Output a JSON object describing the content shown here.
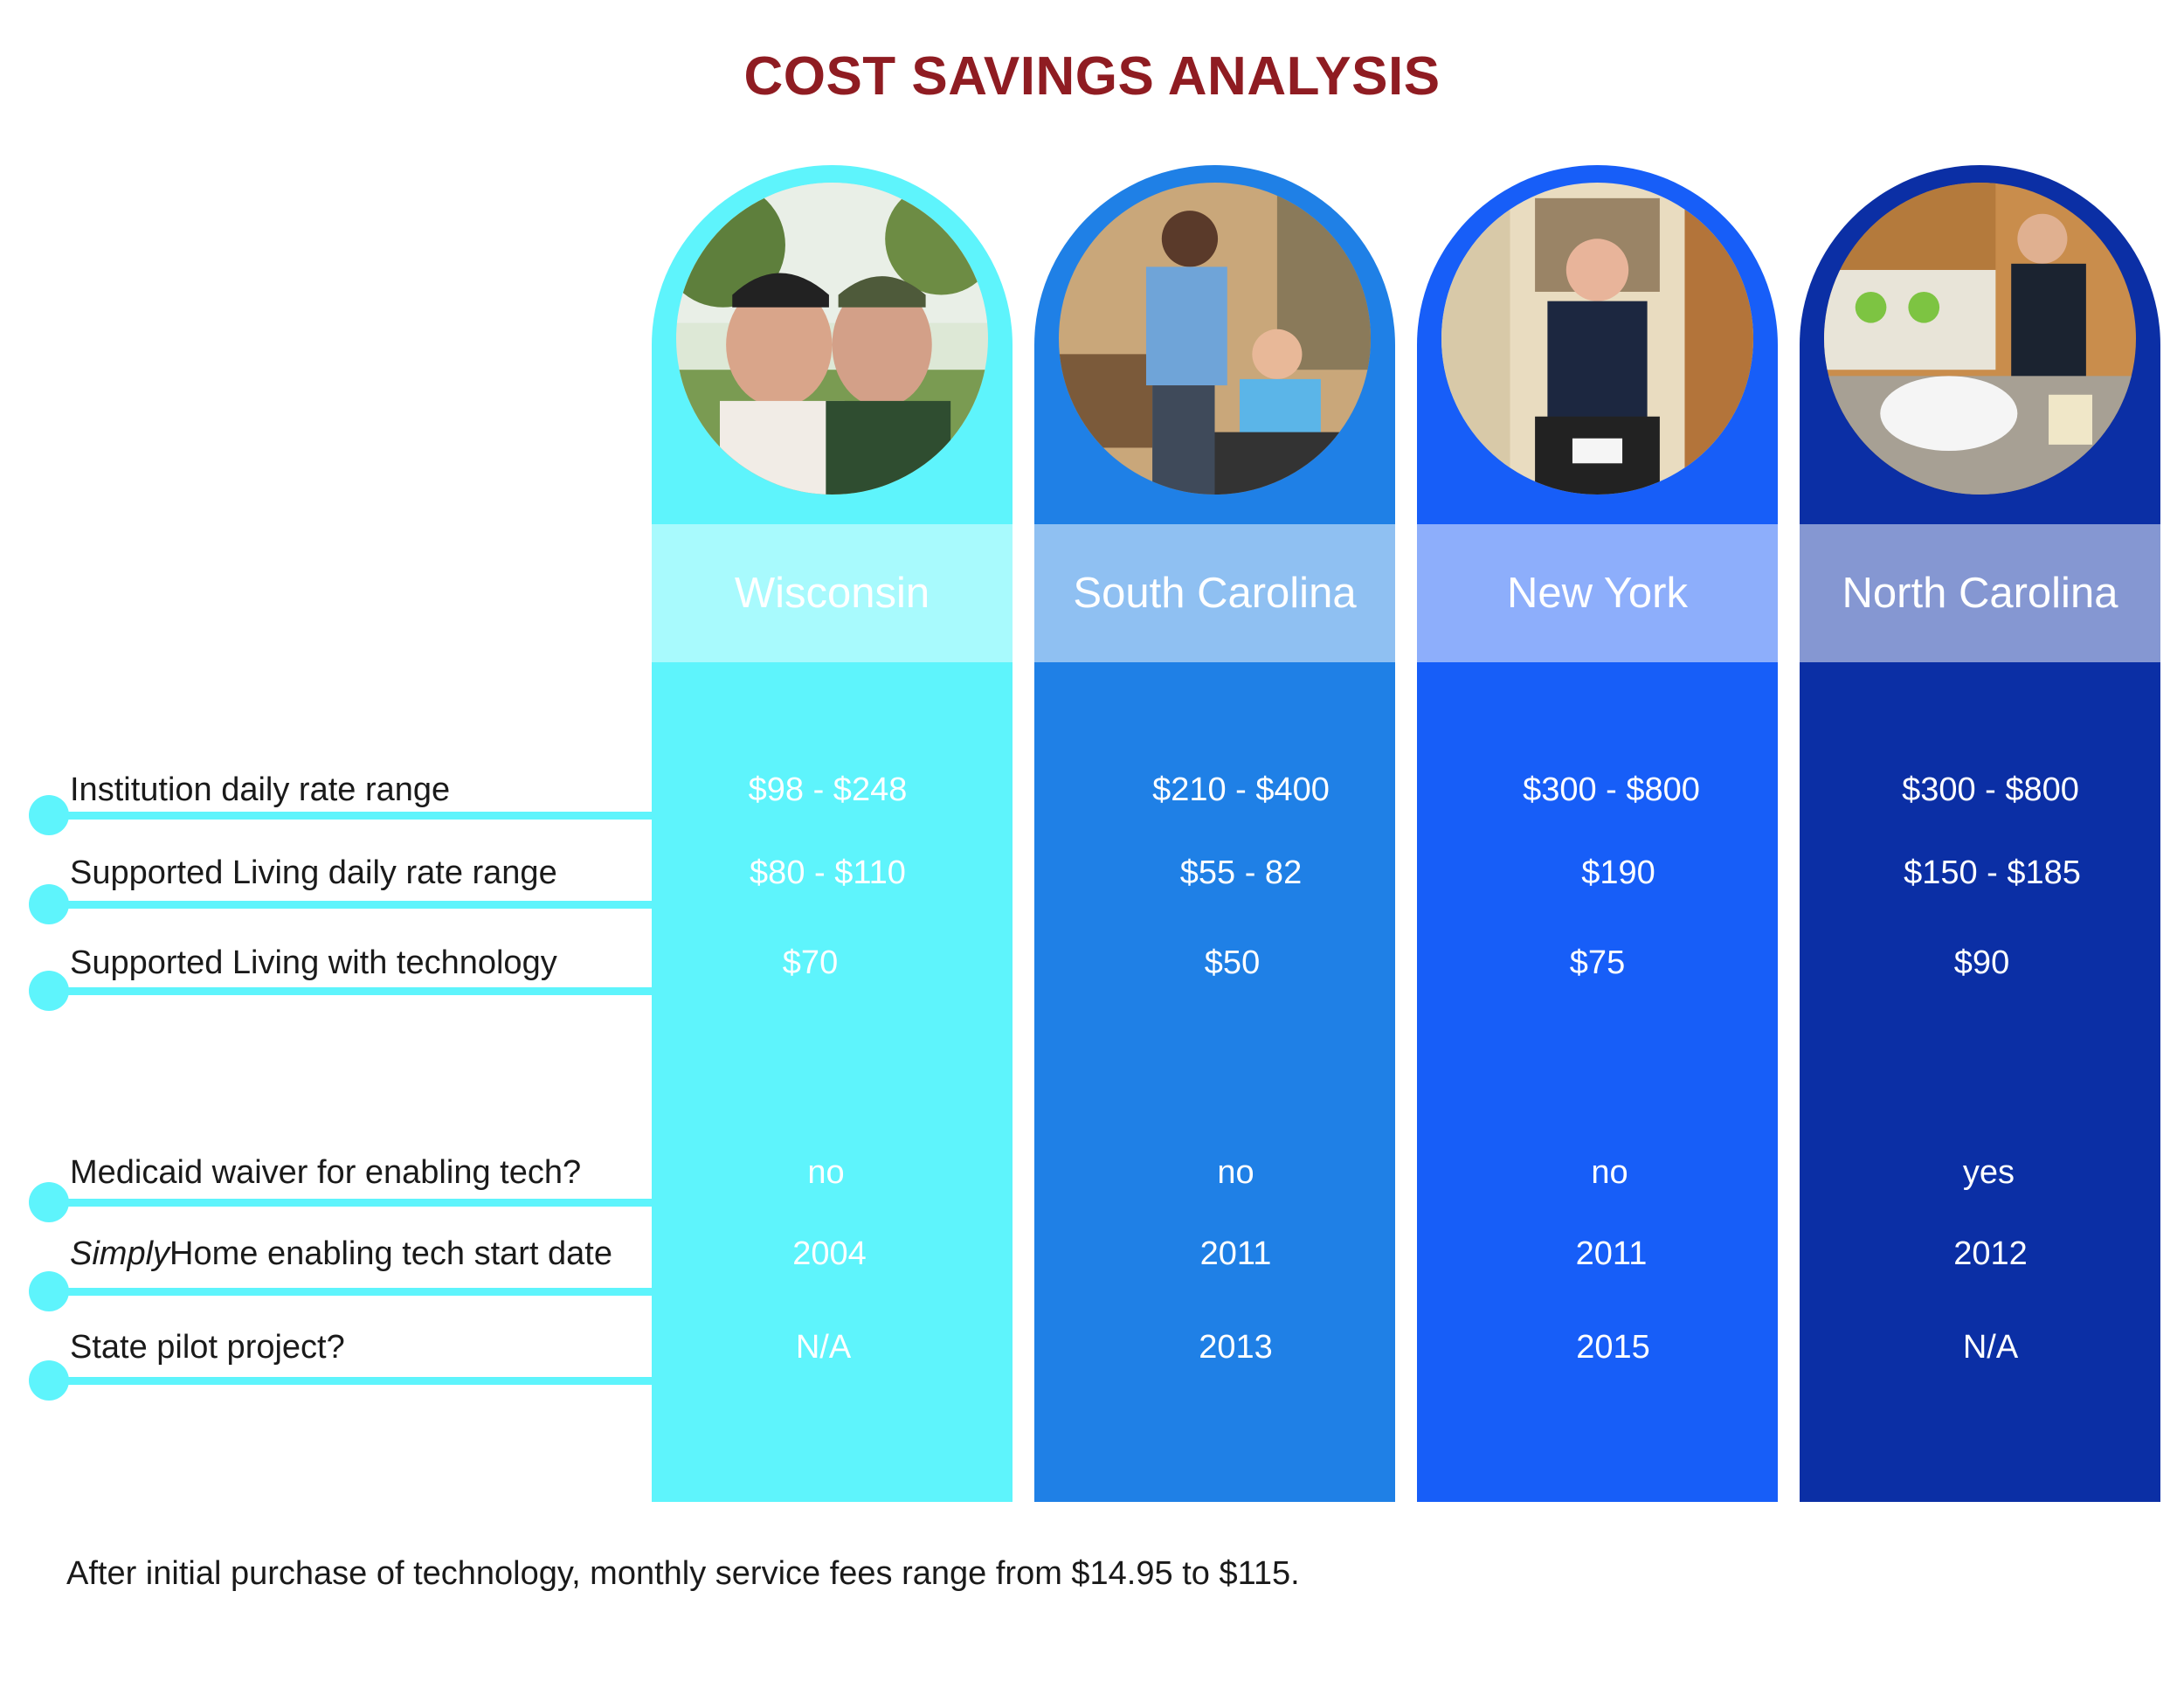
{
  "title": "COST SAVINGS ANALYSIS",
  "row_labels": [
    {
      "italic": "",
      "text": "Institution daily rate range"
    },
    {
      "italic": "",
      "text": "Supported Living daily rate range"
    },
    {
      "italic": "",
      "text": "Supported Living with technology"
    },
    {
      "italic": "",
      "text": "Medicaid waiver for enabling tech?"
    },
    {
      "italic": "Simply",
      "text": "Home enabling tech start date"
    },
    {
      "italic": "",
      "text": "State pilot project?"
    }
  ],
  "states": [
    {
      "name": "Wisconsin",
      "color": "#5ef4fc",
      "band_color": "#a8fafd",
      "values": [
        "$98 - $248",
        "$80 - $110",
        "$70",
        "no",
        "2004",
        "N/A"
      ]
    },
    {
      "name": "South Carolina",
      "color": "#1f80e6",
      "band_color": "#8fc0f2",
      "values": [
        "$210 - $400",
        "$55 - 82",
        "$50",
        "no",
        "2011",
        "2013"
      ]
    },
    {
      "name": "New York",
      "color": "#175ef8",
      "band_color": "#8daefb",
      "values": [
        "$300 - $800",
        "$190",
        "$75",
        "no",
        "2011",
        "2015"
      ]
    },
    {
      "name": "North Carolina",
      "color": "#0b2fa5",
      "band_color": "#8597d2",
      "values": [
        "$300 - $800",
        "$150 - $185",
        "$90",
        "yes",
        "2012",
        "N/A"
      ]
    }
  ],
  "footnote": "After initial purchase of technology, monthly service fees range from $14.95 to $115."
}
